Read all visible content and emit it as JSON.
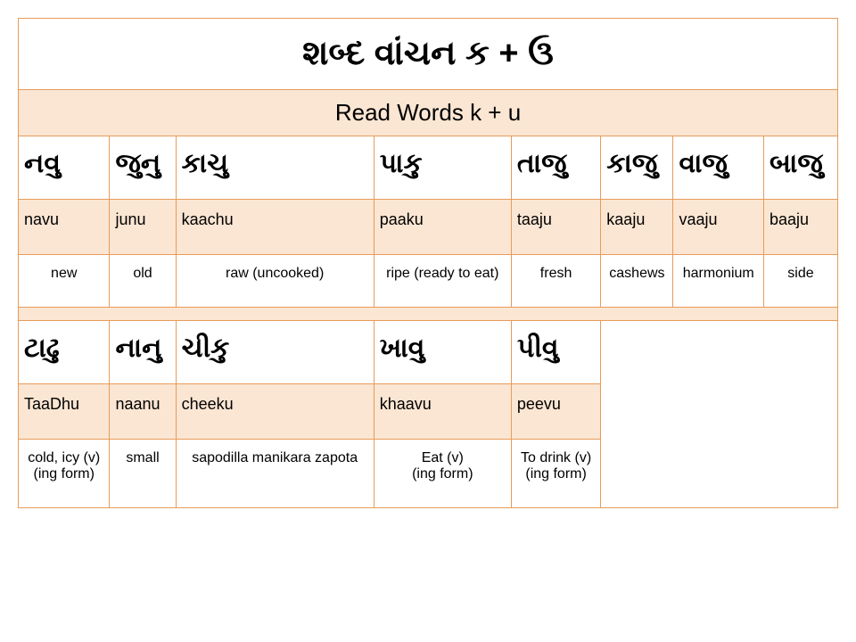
{
  "title_gujarati": "શબ્દ  વાંચન    ક + ઉ",
  "subtitle": "Read Words  k + u",
  "row1": {
    "gujarati": [
      "નવુ",
      "જુનુ",
      "કાચુ",
      "પાકુ",
      "તાજુ",
      "કાજુ",
      "વાજુ",
      "બાજુ"
    ],
    "translit": [
      "navu",
      "junu",
      "kaachu",
      "paaku",
      "taaju",
      "kaaju",
      "vaaju",
      "baaju"
    ],
    "meaning": [
      "new",
      "old",
      "raw (uncooked)",
      "ripe (ready to eat)",
      "fresh",
      "cashews",
      "harmonium",
      "side"
    ]
  },
  "row2": {
    "gujarati": [
      "ટાઢુ",
      "નાનુ",
      "ચીકુ",
      "ખાવુ",
      "પીવુ"
    ],
    "translit": [
      "TaaDhu",
      "naanu",
      "cheeku",
      "khaavu",
      "peevu"
    ],
    "meaning": [
      "cold, icy (v)\n(ing form)",
      "small",
      "sapodilla manikara zapota",
      "Eat (v)\n(ing form)",
      "To drink (v)\n(ing form)"
    ]
  },
  "colors": {
    "border": "#e89b5a",
    "light_bg": "#fbe6d3",
    "orange": "#e89150",
    "white": "#ffffff"
  }
}
